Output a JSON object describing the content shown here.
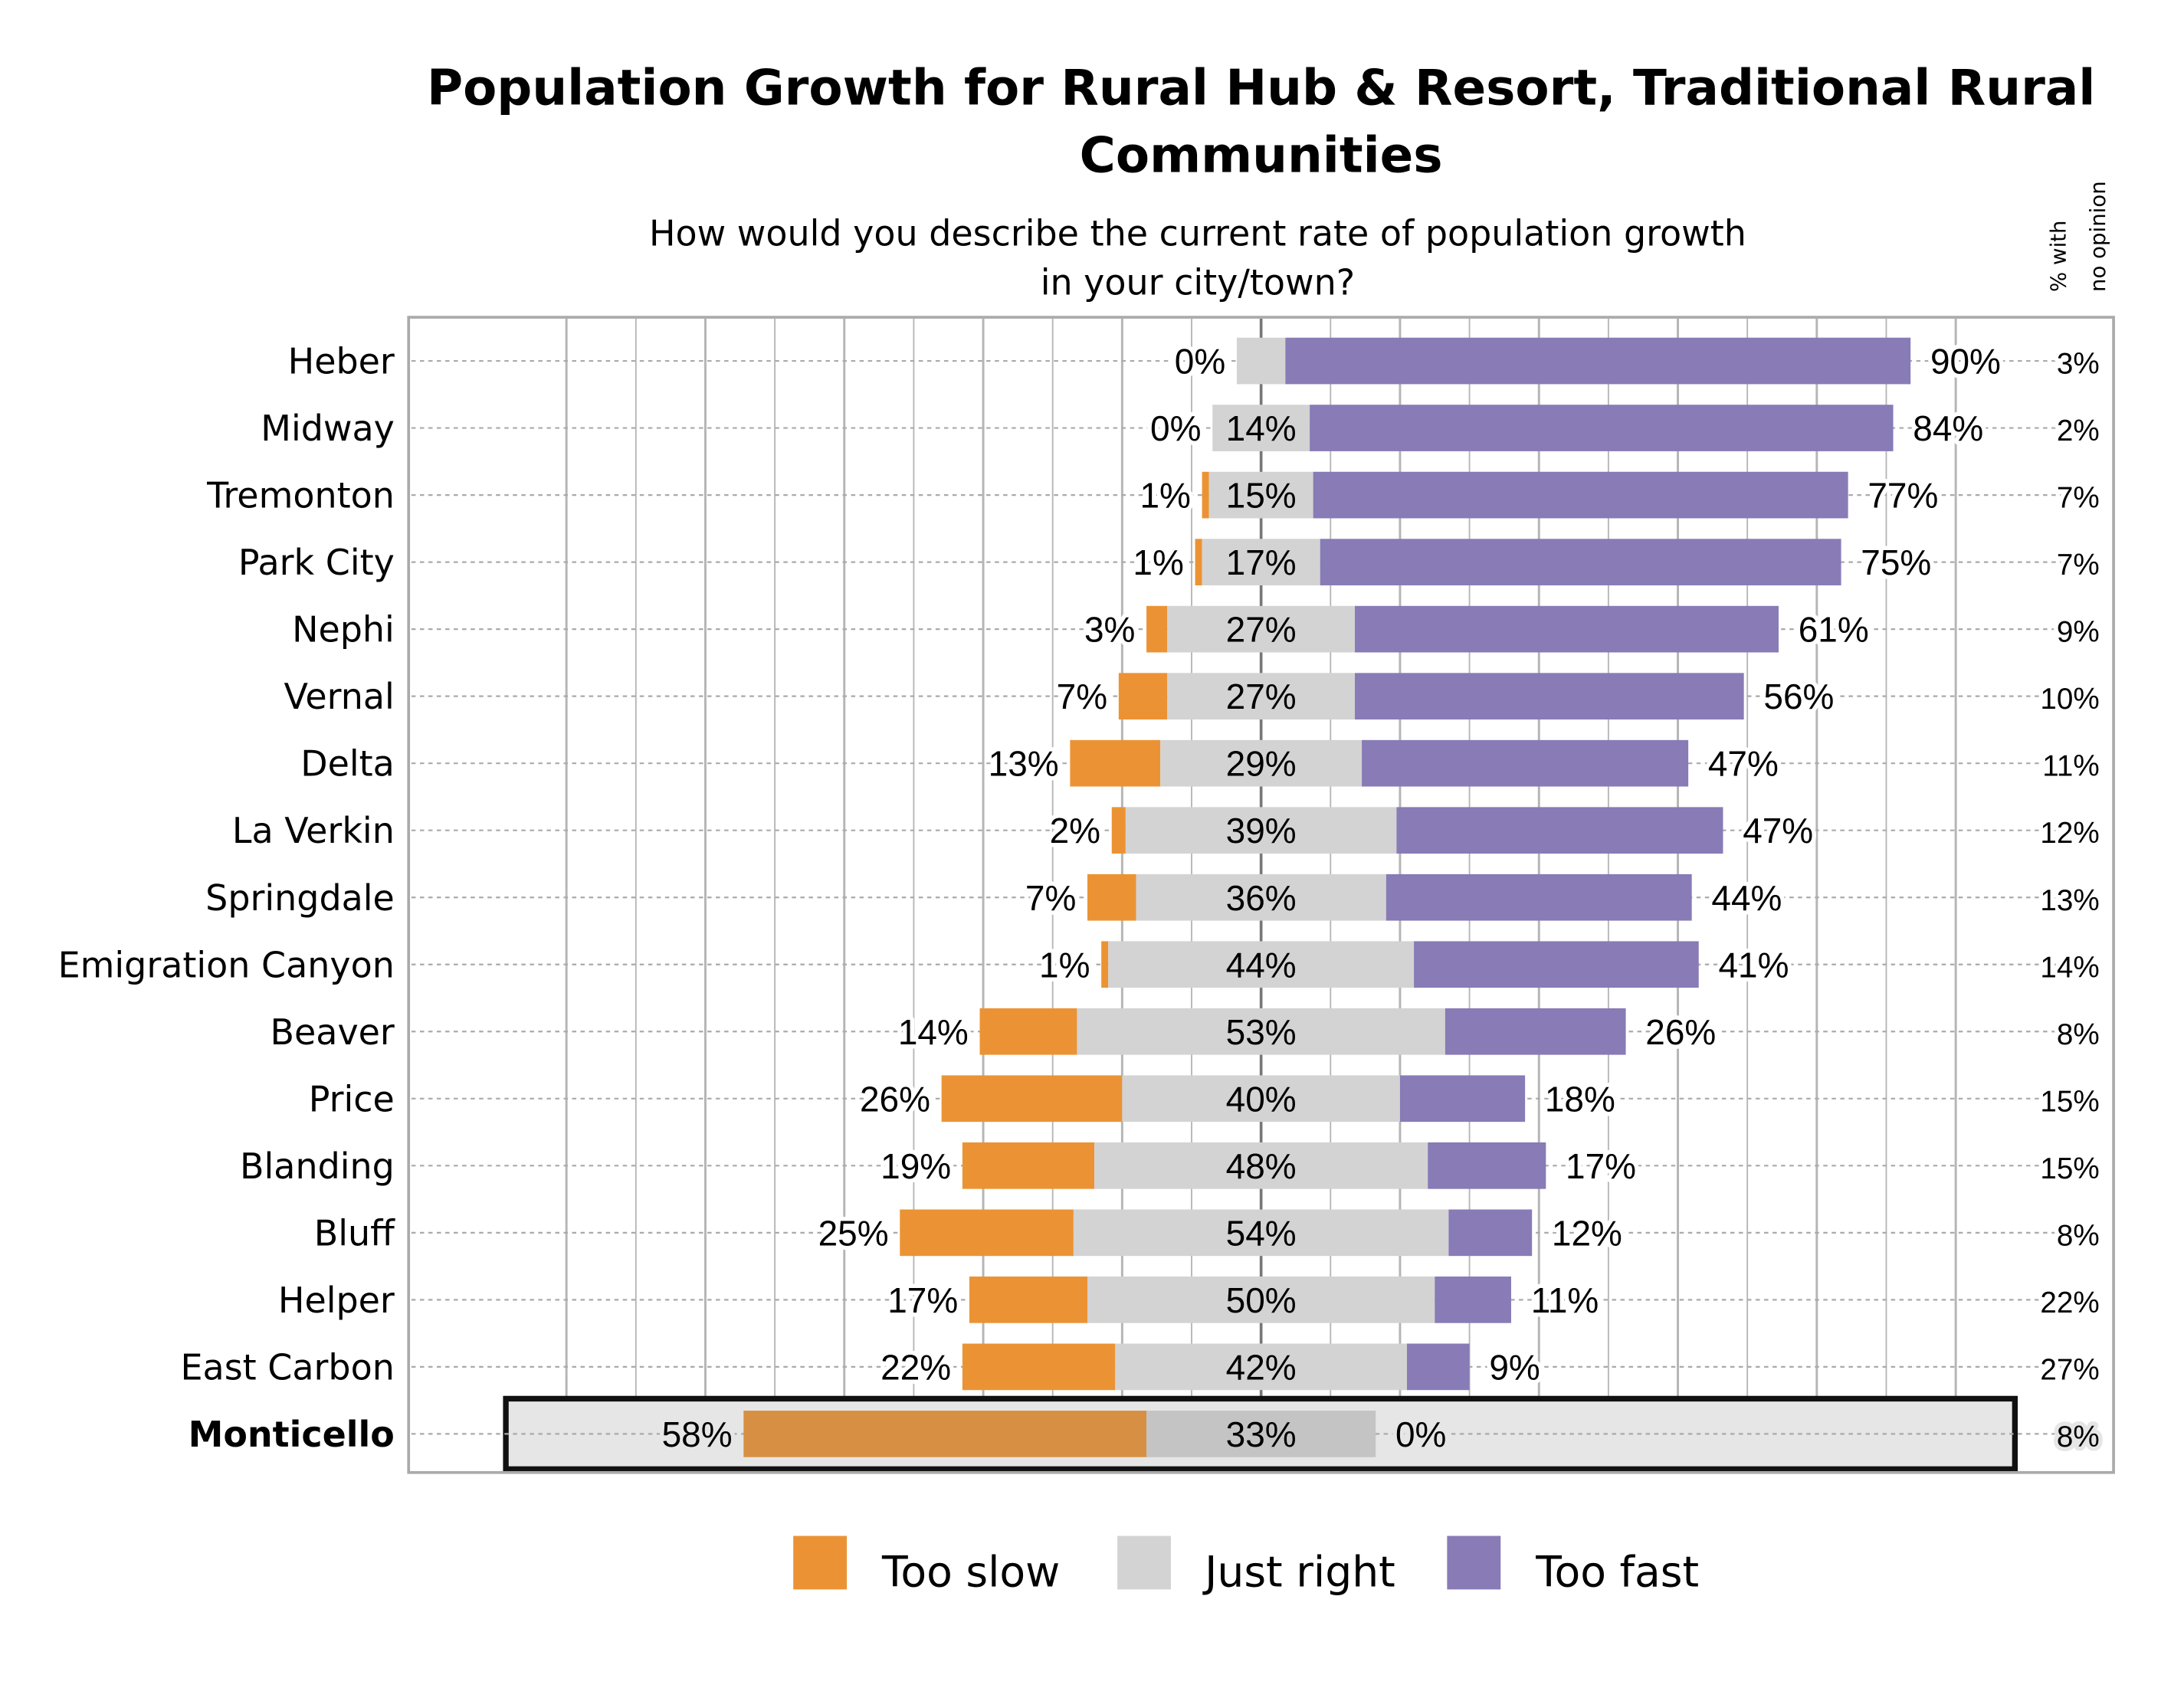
{
  "chart_data": {
    "type": "bar",
    "orientation": "horizontal",
    "stacked": "diverging",
    "title": "Population Growth for Rural Hub & Resort, Traditional Rural Communities",
    "title_lines": [
      "Population Growth for Rural Hub & Resort, Traditional Rural",
      "Communities"
    ],
    "subtitle_lines": [
      "How would you describe the current rate of population growth",
      "in your city/town?"
    ],
    "side_header_lines": [
      "% with",
      "no opinion"
    ],
    "unit": "%",
    "grid": true,
    "legend_position": "bottom",
    "highlighted_category": "Monticello",
    "categories": [
      "Heber",
      "Midway",
      "Tremonton",
      "Park City",
      "Nephi",
      "Vernal",
      "Delta",
      "La Verkin",
      "Springdale",
      "Emigration Canyon",
      "Beaver",
      "Price",
      "Blanding",
      "Bluff",
      "Helper",
      "East Carbon",
      "Monticello"
    ],
    "series": [
      {
        "name": "Too slow",
        "color": "#eb9334",
        "highlight_color": "#d79043",
        "values": [
          0,
          0,
          1,
          1,
          3,
          7,
          13,
          2,
          7,
          1,
          14,
          26,
          19,
          25,
          17,
          22,
          58
        ],
        "labels": [
          "0%",
          "0%",
          "1%",
          "1%",
          "3%",
          "7%",
          "13%",
          "2%",
          "7%",
          "1%",
          "14%",
          "26%",
          "19%",
          "25%",
          "17%",
          "22%",
          "58%"
        ]
      },
      {
        "name": "Just right",
        "color": "#d3d3d3",
        "highlight_color": "#c4c4c4",
        "values": [
          7,
          14,
          15,
          17,
          27,
          27,
          29,
          39,
          36,
          44,
          53,
          40,
          48,
          54,
          50,
          42,
          33
        ],
        "labels": [
          "",
          "14%",
          "15%",
          "17%",
          "27%",
          "27%",
          "29%",
          "39%",
          "36%",
          "44%",
          "53%",
          "40%",
          "48%",
          "54%",
          "50%",
          "42%",
          "33%"
        ]
      },
      {
        "name": "Too fast",
        "color": "#887bb6",
        "highlight_color": "#887bb6",
        "values": [
          90,
          84,
          77,
          75,
          61,
          56,
          47,
          47,
          44,
          41,
          26,
          18,
          17,
          12,
          11,
          9,
          0
        ],
        "labels": [
          "90%",
          "84%",
          "77%",
          "75%",
          "61%",
          "56%",
          "47%",
          "47%",
          "44%",
          "41%",
          "26%",
          "18%",
          "17%",
          "12%",
          "11%",
          "9%",
          "0%"
        ]
      }
    ],
    "no_opinion": [
      "3%",
      "2%",
      "7%",
      "7%",
      "9%",
      "10%",
      "11%",
      "12%",
      "13%",
      "14%",
      "8%",
      "15%",
      "15%",
      "8%",
      "22%",
      "27%",
      "8%"
    ]
  }
}
